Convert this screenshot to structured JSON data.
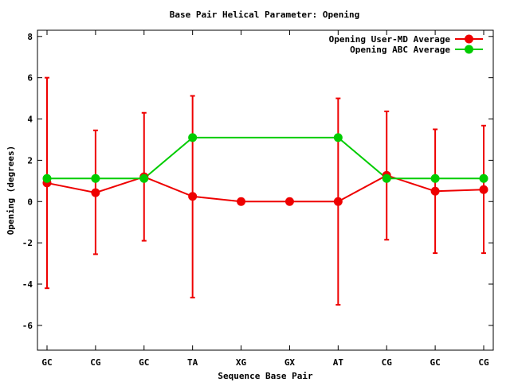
{
  "chart_data": {
    "type": "line",
    "title": "Base Pair Helical Parameter: Opening",
    "xlabel": "Sequence Base Pair",
    "ylabel": "Opening (degrees)",
    "categories": [
      "GC",
      "CG",
      "GC",
      "TA",
      "XG",
      "GX",
      "AT",
      "CG",
      "GC",
      "CG"
    ],
    "ylim": [
      -7.2,
      8.3
    ],
    "yticks": [
      "-6",
      "-4",
      "-2",
      "0",
      "2",
      "4",
      "6",
      "8"
    ],
    "grid": false,
    "legend_position": "top-right",
    "series": [
      {
        "name": "Opening User-MD Average",
        "color": "#ee0000",
        "values": [
          0.9,
          0.43,
          1.2,
          0.25,
          0.0,
          0.0,
          0.0,
          1.27,
          0.5,
          0.58
        ],
        "error_low": [
          -4.2,
          -2.55,
          -1.9,
          -4.65,
          null,
          null,
          -5.0,
          -1.85,
          -2.5,
          -2.5
        ],
        "error_high": [
          6.0,
          3.45,
          4.3,
          5.12,
          null,
          null,
          5.0,
          4.37,
          3.5,
          3.68
        ]
      },
      {
        "name": "Opening ABC Average",
        "color": "#00cc00",
        "values": [
          1.12,
          1.12,
          1.12,
          3.1,
          null,
          null,
          3.1,
          1.12,
          1.12,
          1.12
        ]
      }
    ]
  }
}
